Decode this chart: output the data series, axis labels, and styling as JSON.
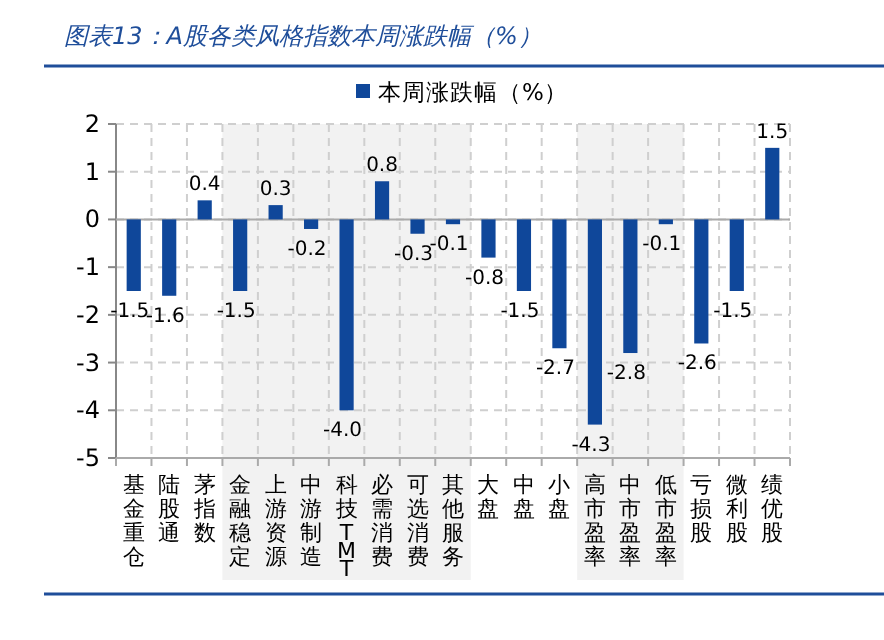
{
  "chart_data": {
    "type": "bar",
    "title": "图表13：A股各类风格指数本周涨跌幅（%）",
    "categories": [
      "基金重仓",
      "陆股通",
      "茅指数",
      "金融稳定",
      "上游资源",
      "中游制造",
      "科技TMT",
      "必需消费",
      "可选消费",
      "其他服务",
      "大盘",
      "中盘",
      "小盘",
      "高市盈率",
      "中市盈率",
      "低市盈率",
      "亏损股",
      "微利股",
      "绩优股"
    ],
    "series": [
      {
        "name": "本周涨跌幅（%）",
        "color": "#0f479a",
        "values": [
          -1.5,
          -1.6,
          0.4,
          -1.5,
          0.3,
          -0.2,
          -4.0,
          0.8,
          -0.3,
          -0.1,
          -0.8,
          -1.5,
          -2.7,
          -4.3,
          -2.8,
          -0.1,
          -2.6,
          -1.5,
          1.5
        ],
        "value_labels": [
          "-1.5",
          "-1.6",
          "0.4",
          "-1.5",
          "0.3",
          "-0.2",
          "-4.0",
          "0.8",
          "-0.3",
          "-0.1",
          "-0.8",
          "-1.5",
          "-2.7",
          "-4.3",
          "-2.8",
          "-0.1",
          "-2.6",
          "-1.5",
          "1.5"
        ]
      }
    ],
    "ylim": [
      -5,
      2
    ],
    "yticks": [
      -5,
      -4,
      -3,
      -2,
      -1,
      0,
      1,
      2
    ],
    "bands": [
      {
        "axis": "x",
        "from": "金融稳定",
        "to": "其他服务",
        "color": "#f2f2f2"
      },
      {
        "axis": "x",
        "from": "高市盈率",
        "to": "低市盈率",
        "color": "#f2f2f2"
      }
    ],
    "grid": true,
    "legend": "top"
  }
}
